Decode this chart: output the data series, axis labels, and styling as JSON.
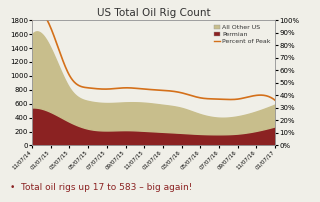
{
  "title": "US Total Oil Rig Count",
  "annotation": "•  Total oil rigs up 17 to 583 – big again!",
  "x_labels": [
    "11/07/14",
    "01/07/15",
    "03/07/15",
    "05/07/15",
    "07/07/15",
    "09/07/15",
    "11/07/15",
    "01/07/16",
    "03/07/16",
    "05/07/16",
    "07/07/16",
    "09/07/16",
    "11/07/16",
    "01/07/17"
  ],
  "permian": [
    545,
    480,
    340,
    240,
    215,
    220,
    210,
    195,
    180,
    165,
    160,
    170,
    210,
    275
  ],
  "other_us": [
    1055,
    920,
    490,
    400,
    395,
    400,
    405,
    390,
    360,
    285,
    240,
    250,
    280,
    315
  ],
  "percent_of_peak": [
    100,
    94,
    56,
    46,
    45,
    46,
    45,
    44,
    42,
    38,
    37,
    37,
    40,
    36
  ],
  "color_permian": "#8B2222",
  "color_other_us": "#C8BE8C",
  "color_line": "#D4701A",
  "background_color": "#F0EFE8",
  "ylim_left": [
    0,
    1800
  ],
  "ylim_right": [
    0,
    100
  ],
  "yticks_left": [
    0,
    200,
    400,
    600,
    800,
    1000,
    1200,
    1400,
    1600,
    1800
  ],
  "yticks_right": [
    0,
    10,
    20,
    30,
    40,
    50,
    60,
    70,
    80,
    90,
    100
  ]
}
